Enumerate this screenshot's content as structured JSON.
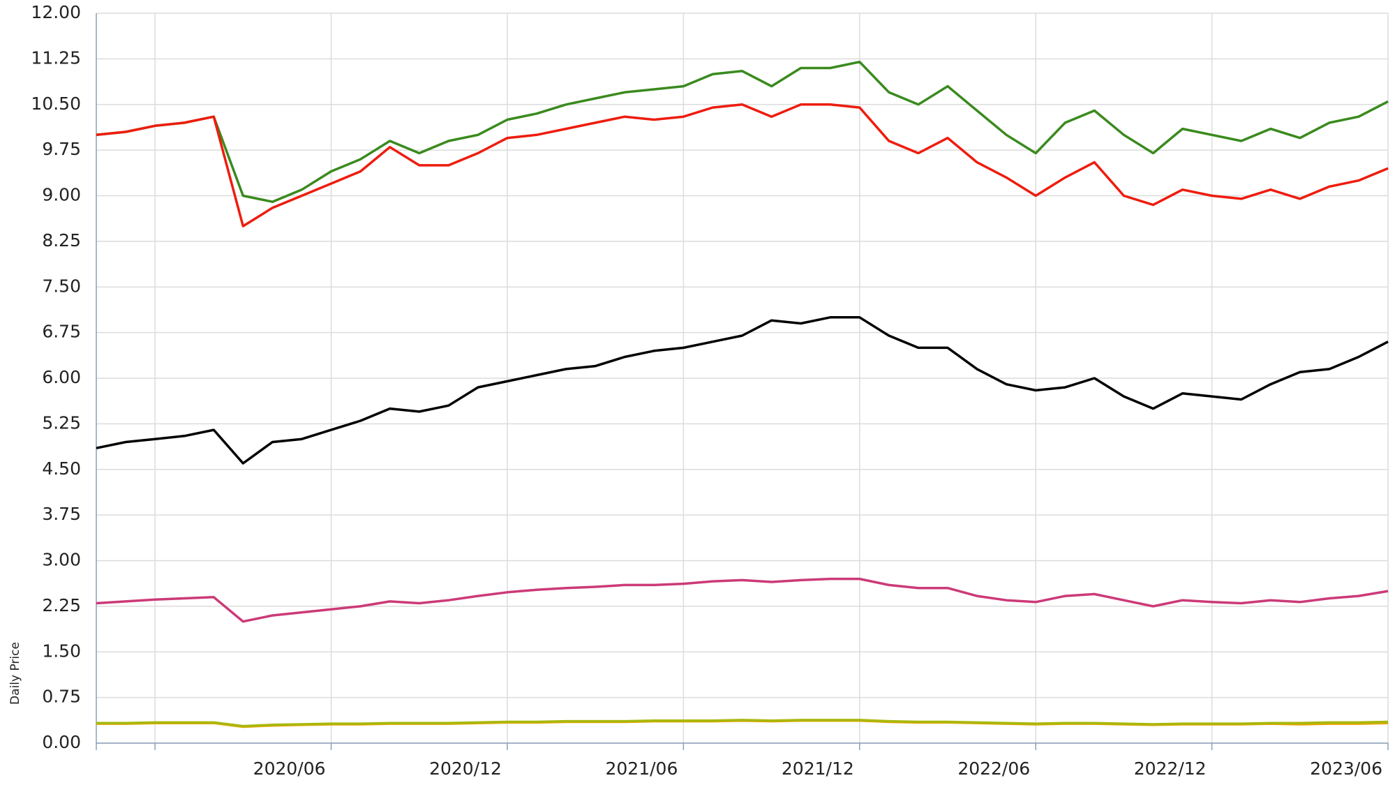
{
  "chart_data": {
    "type": "line",
    "y_label": "Daily Price",
    "x": [
      "2019/10",
      "2019/11",
      "2019/12",
      "2020/01",
      "2020/02",
      "2020/03",
      "2020/04",
      "2020/05",
      "2020/06",
      "2020/07",
      "2020/08",
      "2020/09",
      "2020/10",
      "2020/11",
      "2020/12",
      "2021/01",
      "2021/02",
      "2021/03",
      "2021/04",
      "2021/05",
      "2021/06",
      "2021/07",
      "2021/08",
      "2021/09",
      "2021/10",
      "2021/11",
      "2021/12",
      "2022/01",
      "2022/02",
      "2022/03",
      "2022/04",
      "2022/05",
      "2022/06",
      "2022/07",
      "2022/08",
      "2022/09",
      "2022/10",
      "2022/11",
      "2022/12",
      "2023/01",
      "2023/02",
      "2023/03",
      "2023/04",
      "2023/05",
      "2023/06"
    ],
    "xlim": [
      "2019/10",
      "2023/06"
    ],
    "xticks": [
      {
        "value": "2019/12",
        "label": null
      },
      "2020/06",
      "2020/12",
      "2021/06",
      "2021/12",
      "2022/06",
      "2022/12",
      "2023/06"
    ],
    "ylim": [
      0,
      12
    ],
    "yticks": [
      {
        "value": 0,
        "label": "0.00"
      },
      {
        "value": 0.75,
        "label": "0.75"
      },
      {
        "value": 1.5,
        "label": "1.50"
      },
      {
        "value": 2.25,
        "label": "2.25"
      },
      {
        "value": 3,
        "label": "3.00"
      },
      {
        "value": 3.75,
        "label": "3.75"
      },
      {
        "value": 4.5,
        "label": "4.50"
      },
      {
        "value": 5.25,
        "label": "5.25"
      },
      {
        "value": 6,
        "label": "6.00"
      },
      {
        "value": 6.75,
        "label": "6.75"
      },
      {
        "value": 7.5,
        "label": "7.50"
      },
      {
        "value": 8.25,
        "label": "8.25"
      },
      {
        "value": 9,
        "label": "9.00"
      },
      {
        "value": 9.75,
        "label": "9.75"
      },
      {
        "value": 10.5,
        "label": "10.50"
      },
      {
        "value": 11.25,
        "label": "11.25"
      },
      {
        "value": 12,
        "label": "12.00"
      }
    ],
    "grid": true,
    "series": [
      {
        "color": "#3a8a1e",
        "values": [
          10.0,
          10.05,
          10.15,
          10.2,
          10.3,
          9.0,
          8.9,
          9.1,
          9.4,
          9.6,
          9.9,
          9.7,
          9.9,
          10.0,
          10.25,
          10.35,
          10.5,
          10.6,
          10.7,
          10.75,
          10.8,
          11.0,
          11.05,
          10.8,
          11.1,
          11.1,
          11.2,
          10.7,
          10.5,
          10.8,
          10.4,
          10.0,
          9.7,
          10.2,
          10.4,
          10.0,
          9.7,
          10.1,
          10.0,
          9.9,
          10.1,
          9.95,
          10.2,
          10.3,
          10.55
        ]
      },
      {
        "color": "#ee1c0e",
        "values": [
          10.0,
          10.05,
          10.15,
          10.2,
          10.3,
          8.5,
          8.8,
          9.0,
          9.2,
          9.4,
          9.8,
          9.5,
          9.5,
          9.7,
          9.95,
          10.0,
          10.1,
          10.2,
          10.3,
          10.25,
          10.3,
          10.45,
          10.5,
          10.3,
          10.5,
          10.5,
          10.45,
          9.9,
          9.7,
          9.95,
          9.55,
          9.3,
          9.0,
          9.3,
          9.55,
          9.0,
          8.85,
          9.1,
          9.0,
          8.95,
          9.1,
          8.95,
          9.15,
          9.25,
          9.45
        ]
      },
      {
        "color": "#000000",
        "values": [
          4.85,
          4.95,
          5.0,
          5.05,
          5.15,
          4.6,
          4.95,
          5.0,
          5.15,
          5.3,
          5.5,
          5.45,
          5.55,
          5.85,
          5.95,
          6.05,
          6.15,
          6.2,
          6.35,
          6.45,
          6.5,
          6.6,
          6.7,
          6.95,
          6.9,
          7.0,
          7.0,
          6.7,
          6.5,
          6.5,
          6.15,
          5.9,
          5.8,
          5.85,
          6.0,
          5.7,
          5.5,
          5.75,
          5.7,
          5.65,
          5.9,
          6.1,
          6.15,
          6.35,
          6.6
        ]
      },
      {
        "color": "#cc3a78",
        "values": [
          2.3,
          2.33,
          2.36,
          2.38,
          2.4,
          2.0,
          2.1,
          2.15,
          2.2,
          2.25,
          2.33,
          2.3,
          2.35,
          2.42,
          2.48,
          2.52,
          2.55,
          2.57,
          2.6,
          2.6,
          2.62,
          2.66,
          2.68,
          2.65,
          2.68,
          2.7,
          2.7,
          2.6,
          2.55,
          2.55,
          2.42,
          2.35,
          2.32,
          2.42,
          2.45,
          2.35,
          2.25,
          2.35,
          2.32,
          2.3,
          2.35,
          2.32,
          2.38,
          2.42,
          2.5
        ]
      },
      {
        "color": "#e8a400",
        "values": [
          0.32,
          0.32,
          0.33,
          0.33,
          0.33,
          0.27,
          0.29,
          0.3,
          0.31,
          0.31,
          0.32,
          0.32,
          0.32,
          0.33,
          0.34,
          0.34,
          0.35,
          0.35,
          0.35,
          0.36,
          0.36,
          0.36,
          0.37,
          0.36,
          0.37,
          0.37,
          0.37,
          0.35,
          0.34,
          0.34,
          0.33,
          0.32,
          0.31,
          0.32,
          0.32,
          0.31,
          0.3,
          0.31,
          0.31,
          0.31,
          0.32,
          0.31,
          0.32,
          0.32,
          0.33
        ]
      },
      {
        "color": "#a9b80c",
        "values": [
          0.33,
          0.33,
          0.34,
          0.34,
          0.34,
          0.28,
          0.3,
          0.31,
          0.32,
          0.32,
          0.33,
          0.33,
          0.33,
          0.34,
          0.35,
          0.35,
          0.36,
          0.36,
          0.36,
          0.37,
          0.37,
          0.37,
          0.38,
          0.37,
          0.38,
          0.38,
          0.38,
          0.36,
          0.35,
          0.35,
          0.34,
          0.33,
          0.32,
          0.33,
          0.33,
          0.32,
          0.31,
          0.32,
          0.32,
          0.32,
          0.33,
          0.33,
          0.34,
          0.34,
          0.35
        ]
      }
    ]
  }
}
